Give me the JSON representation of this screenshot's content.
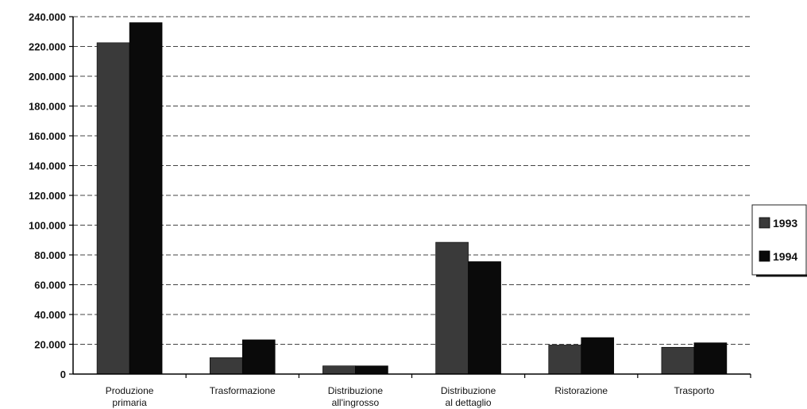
{
  "chart_data": {
    "type": "bar",
    "categories": [
      [
        "Produzione",
        "primaria"
      ],
      [
        "Trasformazione"
      ],
      [
        "Distribuzione",
        "all'ingrosso"
      ],
      [
        "Distribuzione",
        "al dettaglio"
      ],
      [
        "Ristorazione"
      ],
      [
        "Trasporto"
      ]
    ],
    "series": [
      {
        "name": "1993",
        "values": [
          222500,
          11000,
          5500,
          88500,
          19500,
          18000
        ],
        "color": "#3a3a3a"
      },
      {
        "name": "1994",
        "values": [
          236000,
          23000,
          5500,
          75500,
          24500,
          21000
        ],
        "color": "#0a0a0a"
      }
    ],
    "ylim": [
      0,
      240000
    ],
    "yticks": [
      0,
      20000,
      40000,
      60000,
      80000,
      100000,
      120000,
      140000,
      160000,
      180000,
      200000,
      220000,
      240000
    ],
    "ytick_labels": [
      "0",
      "20.000",
      "40.000",
      "60.000",
      "80.000",
      "100.000",
      "120.000",
      "140.000",
      "160.000",
      "180.000",
      "200.000",
      "220.000",
      "240.000"
    ],
    "grid": true,
    "legend": "right"
  }
}
